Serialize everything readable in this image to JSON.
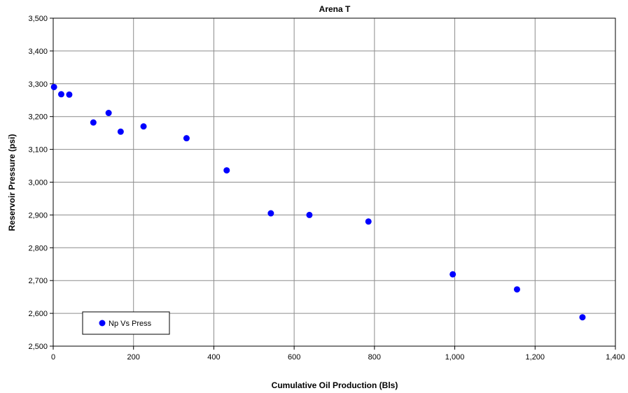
{
  "chart_data": {
    "type": "scatter",
    "title": "Arena T",
    "xlabel": "Cumulative Oil Production (Bls)",
    "ylabel": "Reservoir Pressure (psi)",
    "xlim": [
      0,
      1400
    ],
    "ylim": [
      2500,
      3500
    ],
    "xticks": [
      0,
      200,
      400,
      600,
      800,
      1000,
      1200,
      1400
    ],
    "xtick_labels": [
      "0",
      "200",
      "400",
      "600",
      "800",
      "1,000",
      "1,200",
      "1,400"
    ],
    "yticks": [
      2500,
      2600,
      2700,
      2800,
      2900,
      3000,
      3100,
      3200,
      3300,
      3400,
      3500
    ],
    "ytick_labels": [
      "2,500",
      "2,600",
      "2,700",
      "2,800",
      "2,900",
      "3,000",
      "3,100",
      "3,200",
      "3,300",
      "3,400",
      "3,500"
    ],
    "grid": true,
    "legend_position": "bottom-left",
    "series": [
      {
        "name": "Np Vs Press",
        "color": "#0000ff",
        "marker": "circle",
        "x": [
          2,
          20,
          40,
          100,
          138,
          168,
          225,
          332,
          432,
          542,
          638,
          785,
          995,
          1155,
          1318
        ],
        "y": [
          3290,
          3268,
          3267,
          3182,
          3211,
          3154,
          3170,
          3134,
          3036,
          2905,
          2900,
          2880,
          2719,
          2673,
          2588
        ]
      }
    ]
  }
}
